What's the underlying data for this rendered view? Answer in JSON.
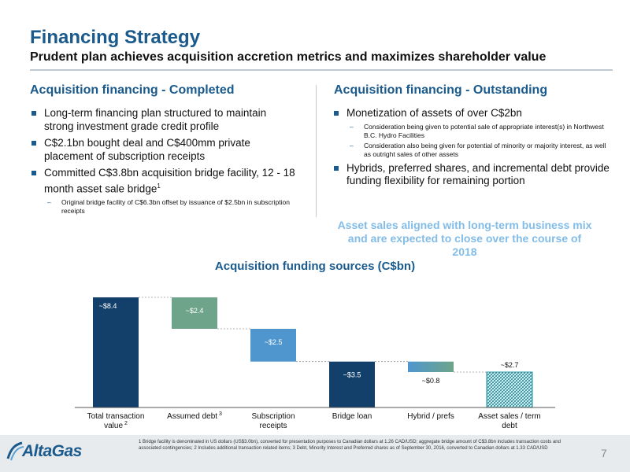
{
  "title": "Financing Strategy",
  "subtitle": "Prudent plan achieves acquisition accretion metrics and maximizes shareholder value",
  "left": {
    "heading": "Acquisition financing - Completed",
    "bullets": [
      "Long-term financing plan structured to maintain strong investment grade credit profile",
      "C$2.1bn bought deal and C$400mm private placement of subscription receipts",
      "Committed C$3.8bn acquisition bridge facility, 12 - 18 month asset sale bridge"
    ],
    "bullet3_sup": "1",
    "sub": "Original bridge facility of C$6.3bn offset by issuance of $2.5bn in subscription receipts"
  },
  "right": {
    "heading": "Acquisition financing - Outstanding",
    "bullet1": "Monetization of assets of over C$2bn",
    "sub1": "Consideration being given to potential sale of appropriate interest(s) in Northwest B.C. Hydro Facilities",
    "sub2": "Consideration also being given for potential of minority or majority interest, as well as outright sales of other assets",
    "bullet2": "Hybrids, preferred shares, and incremental debt provide funding flexibility for remaining portion"
  },
  "callout": "Asset sales aligned with long-term business mix and are expected to close over the course of 2018",
  "chart_title": "Acquisition funding sources (C$bn)",
  "chart_data": {
    "type": "bar",
    "subtype": "waterfall",
    "categories": [
      "Total transaction value",
      "Assumed debt",
      "Subscription receipts",
      "Bridge loan",
      "Hybrid / prefs",
      "Asset sales / term debt"
    ],
    "category_superscripts": [
      "2",
      "3",
      "",
      "",
      "",
      ""
    ],
    "values": [
      8.4,
      2.4,
      2.5,
      3.5,
      0.8,
      2.7
    ],
    "bar_base": [
      0,
      6.0,
      3.5,
      0,
      2.7,
      0
    ],
    "labels": [
      "~$8.4",
      "~$2.4",
      "~$2.5",
      "~$3.5",
      "~$0.8",
      "~$2.7"
    ],
    "colors": [
      "#13406b",
      "#6ea58a",
      "#4f96cf",
      "#13406b",
      "#5fa6c2",
      "#1f8f9f"
    ],
    "fill_styles": [
      "solid",
      "solid",
      "solid",
      "solid",
      "gradient",
      "hatched"
    ],
    "ylim": [
      0,
      8.4
    ]
  },
  "footnote": "1 Bridge facility is denominated in US dollars (US$3.0bn), converted for presentation purposes to Canadian dollars at 1.26 CAD/USD; aggregate bridge amount of C$3.8bn includes transaction costs and associated contingencies; 2 Includes additional transaction related items; 3 Debt, Minority Interest and Preferred shares as of September 30, 2016, converted to Canadian dollars at 1.33 CAD/USD",
  "logo": "AltaGas",
  "page_number": "7"
}
